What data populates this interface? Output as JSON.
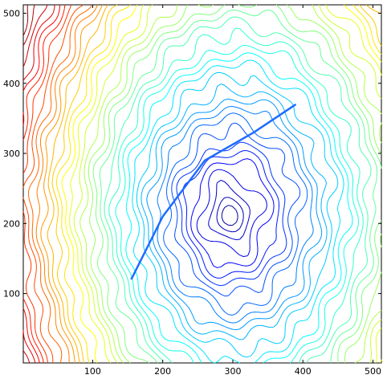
{
  "chart_data": {
    "type": "contour",
    "title": "",
    "xlabel": "",
    "ylabel": "",
    "xlim": [
      1,
      512
    ],
    "ylim": [
      1,
      512
    ],
    "xticks": [
      100,
      200,
      300,
      400,
      500
    ],
    "yticks": [
      100,
      200,
      300,
      400,
      500
    ],
    "colormap": "jet",
    "grid": false,
    "legend": "none",
    "peak": {
      "x": 292,
      "y": 210
    },
    "ridge": [
      [
        155,
        120
      ],
      [
        200,
        210
      ],
      [
        260,
        290
      ],
      [
        330,
        330
      ],
      [
        390,
        370
      ]
    ],
    "levels": 40
  }
}
